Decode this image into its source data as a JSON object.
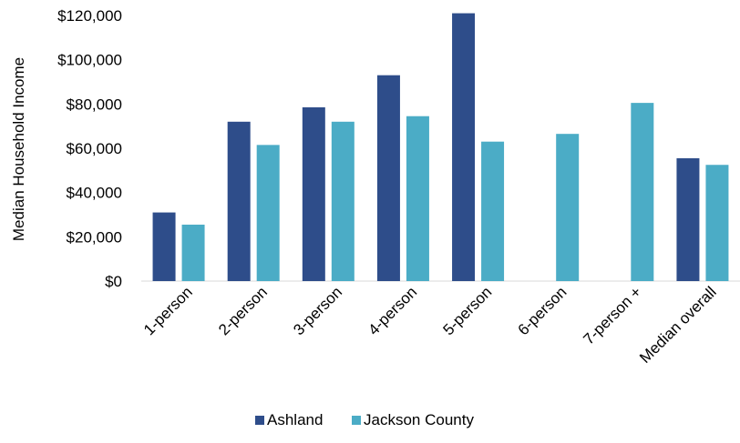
{
  "chart_data": {
    "type": "bar",
    "title": "",
    "xlabel": "",
    "ylabel": "Median Household Income",
    "ylim": [
      0,
      120000
    ],
    "yticks": [
      0,
      20000,
      40000,
      60000,
      80000,
      100000,
      120000
    ],
    "ytick_labels": [
      "$0",
      "$20,000",
      "$40,000",
      "$60,000",
      "$80,000",
      "$100,000",
      "$120,000"
    ],
    "categories": [
      "1-person",
      "2-person",
      "3-person",
      "4-person",
      "5-person",
      "6-person",
      "7-person +",
      "Median overall"
    ],
    "series": [
      {
        "name": "Ashland",
        "color": "#2e4d8a",
        "values": [
          31000,
          72000,
          78500,
          93000,
          121000,
          null,
          null,
          55500
        ]
      },
      {
        "name": "Jackson County",
        "color": "#4bacc6",
        "values": [
          25500,
          61500,
          72000,
          74500,
          63000,
          66500,
          80500,
          52500
        ]
      }
    ],
    "grid": false,
    "legend_position": "bottom"
  }
}
